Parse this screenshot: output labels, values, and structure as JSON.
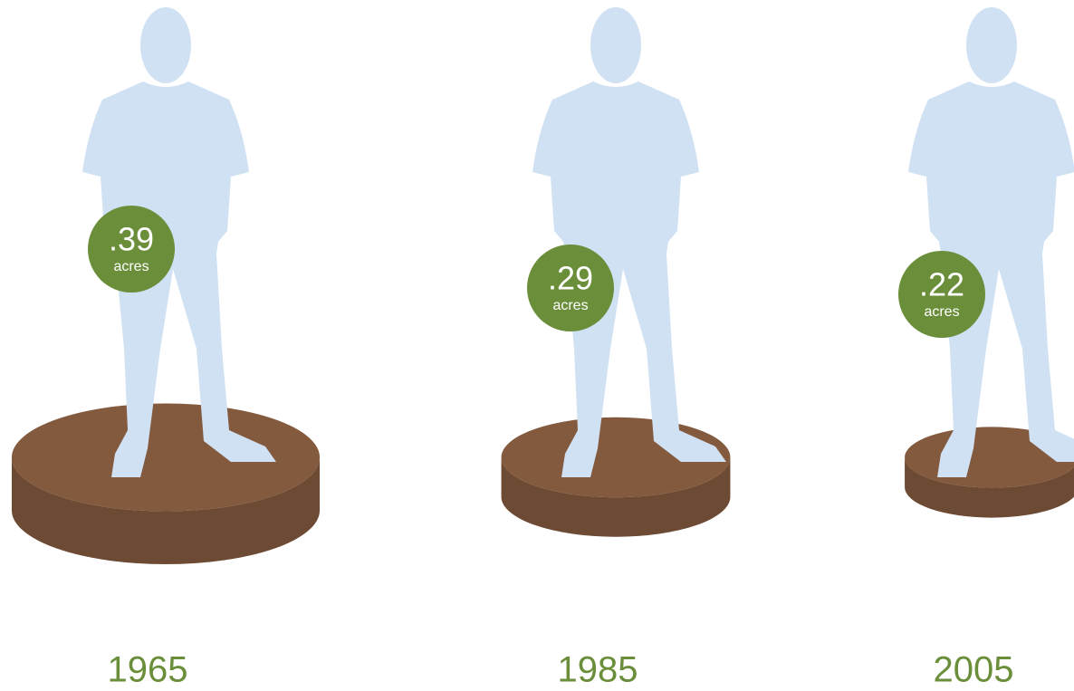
{
  "chart_data": {
    "type": "pictograph",
    "categories": [
      "1965",
      "1985",
      "2005"
    ],
    "values": [
      0.39,
      0.29,
      0.22
    ],
    "value_labels": [
      ".39",
      ".29",
      ".22"
    ],
    "unit": "acres",
    "color": "#845a3e",
    "label_color": "#6b8e3a"
  }
}
